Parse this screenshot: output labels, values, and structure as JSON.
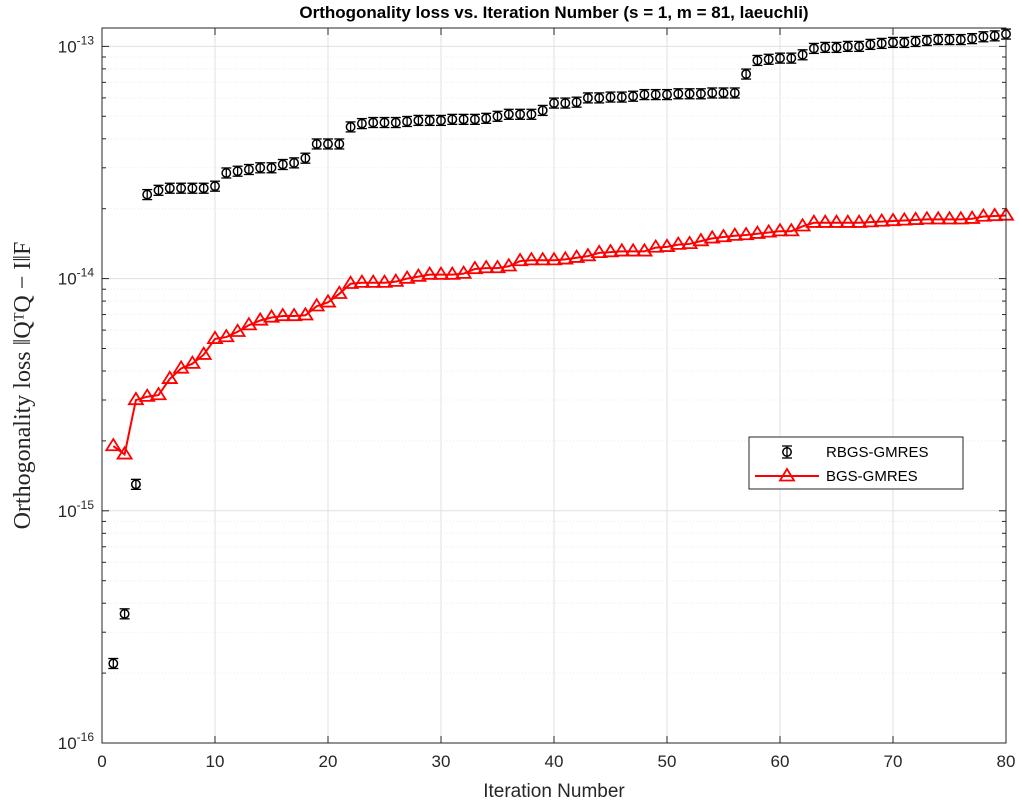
{
  "chart_data": {
    "type": "scatter",
    "title": "Orthogonality loss vs. Iteration Number (s = 1, m = 81, laeuchli)",
    "xlabel": "Iteration Number",
    "ylabel": "Orthogonality loss ‖QᵀQ − I‖F",
    "xlim": [
      0,
      80
    ],
    "ylim": [
      1e-16,
      1.2e-13
    ],
    "yscale": "log",
    "grid": true,
    "legend_position": "right",
    "x_ticks": [
      0,
      10,
      20,
      30,
      40,
      50,
      60,
      70,
      80
    ],
    "y_tick_labels": [
      {
        "base": "10",
        "exp": "-16",
        "value": 1e-16
      },
      {
        "base": "10",
        "exp": "-15",
        "value": 1e-15
      },
      {
        "base": "10",
        "exp": "-14",
        "value": 1e-14
      },
      {
        "base": "10",
        "exp": "-13",
        "value": 1e-13
      }
    ],
    "series": [
      {
        "name": "RBGS-GMRES",
        "color": "#000000",
        "marker": "circle-errorbar",
        "line": false,
        "x": [
          1,
          2,
          3,
          4,
          5,
          6,
          7,
          8,
          9,
          10,
          11,
          12,
          13,
          14,
          15,
          16,
          17,
          18,
          19,
          20,
          21,
          22,
          23,
          24,
          25,
          26,
          27,
          28,
          29,
          30,
          31,
          32,
          33,
          34,
          35,
          36,
          37,
          38,
          39,
          40,
          41,
          42,
          43,
          44,
          45,
          46,
          47,
          48,
          49,
          50,
          51,
          52,
          53,
          54,
          55,
          56,
          57,
          58,
          59,
          60,
          61,
          62,
          63,
          64,
          65,
          66,
          67,
          68,
          69,
          70,
          71,
          72,
          73,
          74,
          75,
          76,
          77,
          78,
          79,
          80
        ],
        "y": [
          2.2e-16,
          3.6e-16,
          1.3e-15,
          2.3e-14,
          2.4e-14,
          2.45e-14,
          2.45e-14,
          2.45e-14,
          2.45e-14,
          2.5e-14,
          2.85e-14,
          2.9e-14,
          2.95e-14,
          3e-14,
          3e-14,
          3.1e-14,
          3.15e-14,
          3.3e-14,
          3.8e-14,
          3.8e-14,
          3.8e-14,
          4.5e-14,
          4.65e-14,
          4.7e-14,
          4.7e-14,
          4.7e-14,
          4.75e-14,
          4.8e-14,
          4.8e-14,
          4.8e-14,
          4.85e-14,
          4.85e-14,
          4.85e-14,
          4.9e-14,
          5e-14,
          5.1e-14,
          5.1e-14,
          5.1e-14,
          5.3e-14,
          5.7e-14,
          5.7e-14,
          5.75e-14,
          6e-14,
          6e-14,
          6.05e-14,
          6.05e-14,
          6.1e-14,
          6.2e-14,
          6.2e-14,
          6.2e-14,
          6.25e-14,
          6.25e-14,
          6.25e-14,
          6.3e-14,
          6.3e-14,
          6.3e-14,
          7.6e-14,
          8.7e-14,
          8.8e-14,
          8.9e-14,
          8.9e-14,
          9.2e-14,
          9.8e-14,
          9.9e-14,
          9.9e-14,
          1e-13,
          1e-13,
          1.02e-13,
          1.03e-13,
          1.04e-13,
          1.04e-13,
          1.05e-13,
          1.06e-13,
          1.07e-13,
          1.07e-13,
          1.07e-13,
          1.08e-13,
          1.1e-13,
          1.11e-13,
          1.13e-13
        ]
      },
      {
        "name": "BGS-GMRES",
        "color": "#ff0000",
        "marker": "triangle",
        "line": true,
        "x": [
          1,
          2,
          3,
          4,
          5,
          6,
          7,
          8,
          9,
          10,
          11,
          12,
          13,
          14,
          15,
          16,
          17,
          18,
          19,
          20,
          21,
          22,
          23,
          24,
          25,
          26,
          27,
          28,
          29,
          30,
          31,
          32,
          33,
          34,
          35,
          36,
          37,
          38,
          39,
          40,
          41,
          42,
          43,
          44,
          45,
          46,
          47,
          48,
          49,
          50,
          51,
          52,
          53,
          54,
          55,
          56,
          57,
          58,
          59,
          60,
          61,
          62,
          63,
          64,
          65,
          66,
          67,
          68,
          69,
          70,
          71,
          72,
          73,
          74,
          75,
          76,
          77,
          78,
          79,
          80
        ],
        "y": [
          1.9e-15,
          1.75e-15,
          3e-15,
          3.1e-15,
          3.15e-15,
          3.7e-15,
          4.1e-15,
          4.3e-15,
          4.7e-15,
          5.5e-15,
          5.6e-15,
          5.9e-15,
          6.3e-15,
          6.6e-15,
          6.8e-15,
          6.9e-15,
          6.9e-15,
          6.95e-15,
          7.6e-15,
          7.9e-15,
          8.6e-15,
          9.5e-15,
          9.6e-15,
          9.6e-15,
          9.6e-15,
          9.7e-15,
          1e-14,
          1.02e-14,
          1.04e-14,
          1.04e-14,
          1.04e-14,
          1.05e-14,
          1.1e-14,
          1.11e-14,
          1.11e-14,
          1.13e-14,
          1.19e-14,
          1.2e-14,
          1.2e-14,
          1.2e-14,
          1.21e-14,
          1.23e-14,
          1.25e-14,
          1.29e-14,
          1.3e-14,
          1.31e-14,
          1.31e-14,
          1.31e-14,
          1.36e-14,
          1.37e-14,
          1.4e-14,
          1.41e-14,
          1.45e-14,
          1.49e-14,
          1.51e-14,
          1.53e-14,
          1.54e-14,
          1.56e-14,
          1.58e-14,
          1.6e-14,
          1.6e-14,
          1.68e-14,
          1.74e-14,
          1.74e-14,
          1.74e-14,
          1.74e-14,
          1.74e-14,
          1.75e-14,
          1.76e-14,
          1.77e-14,
          1.78e-14,
          1.79e-14,
          1.8e-14,
          1.8e-14,
          1.8e-14,
          1.8e-14,
          1.81e-14,
          1.85e-14,
          1.86e-14,
          1.87e-14
        ]
      }
    ]
  }
}
